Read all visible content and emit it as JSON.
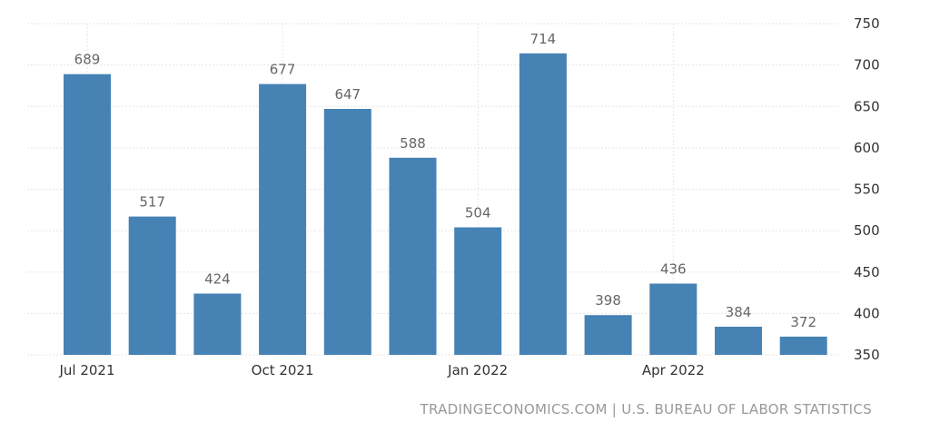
{
  "chart_data": {
    "type": "bar",
    "categories": [
      "Jul 2021",
      "Aug 2021",
      "Sep 2021",
      "Oct 2021",
      "Nov 2021",
      "Dec 2021",
      "Jan 2022",
      "Feb 2022",
      "Mar 2022",
      "Apr 2022",
      "May 2022",
      "Jun 2022"
    ],
    "values": [
      689,
      517,
      424,
      677,
      647,
      588,
      504,
      714,
      398,
      436,
      384,
      372
    ],
    "x_tick_labels": [
      "Jul 2021",
      "Oct 2021",
      "Jan 2022",
      "Apr 2022"
    ],
    "x_tick_categories": [
      "Jul 2021",
      "Oct 2021",
      "Jan 2022",
      "Apr 2022"
    ],
    "y_ticks": [
      350,
      400,
      450,
      500,
      550,
      600,
      650,
      700,
      750
    ],
    "ylim": [
      350,
      750
    ],
    "y_axis_position": "right",
    "grid": true,
    "bar_color": "#4682b4",
    "title": "",
    "xlabel": "",
    "ylabel": ""
  },
  "source": "TRADINGECONOMICS.COM | U.S. BUREAU OF LABOR STATISTICS"
}
